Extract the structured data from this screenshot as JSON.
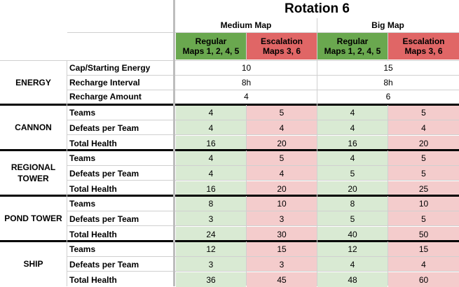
{
  "title": "Rotation 6",
  "maps": {
    "medium": "Medium Map",
    "big": "Big Map"
  },
  "headers": {
    "regular_line1": "Regular",
    "regular_line2": "Maps 1, 2, 4, 5",
    "escalation_line1": "Escalation",
    "escalation_line2": "Maps 3, 6"
  },
  "colors": {
    "green_header": "#6aa84f",
    "red_header": "#e06666",
    "green_cell": "#d9ead3",
    "red_cell": "#f4cccc"
  },
  "energy": {
    "category": "ENERGY",
    "rows": [
      {
        "label": "Cap/Starting Energy",
        "medium": "10",
        "big": "15"
      },
      {
        "label": "Recharge Interval",
        "medium": "8h",
        "big": "8h"
      },
      {
        "label": "Recharge Amount",
        "medium": "4",
        "big": "6"
      }
    ]
  },
  "groups": [
    {
      "category_line1": "CANNON",
      "category_line2": "",
      "rows": [
        {
          "label": "Teams",
          "v": [
            "4",
            "5",
            "4",
            "5"
          ]
        },
        {
          "label": "Defeats per Team",
          "v": [
            "4",
            "4",
            "4",
            "4"
          ]
        },
        {
          "label": "Total Health",
          "v": [
            "16",
            "20",
            "16",
            "20"
          ]
        }
      ]
    },
    {
      "category_line1": "REGIONAL",
      "category_line2": "TOWER",
      "rows": [
        {
          "label": "Teams",
          "v": [
            "4",
            "5",
            "4",
            "5"
          ]
        },
        {
          "label": "Defeats per Team",
          "v": [
            "4",
            "4",
            "5",
            "5"
          ]
        },
        {
          "label": "Total Health",
          "v": [
            "16",
            "20",
            "20",
            "25"
          ]
        }
      ]
    },
    {
      "category_line1": "POND TOWER",
      "category_line2": "",
      "rows": [
        {
          "label": "Teams",
          "v": [
            "8",
            "10",
            "8",
            "10"
          ]
        },
        {
          "label": "Defeats per Team",
          "v": [
            "3",
            "3",
            "5",
            "5"
          ]
        },
        {
          "label": "Total Health",
          "v": [
            "24",
            "30",
            "40",
            "50"
          ]
        }
      ]
    },
    {
      "category_line1": "SHIP",
      "category_line2": "",
      "rows": [
        {
          "label": "Teams",
          "v": [
            "12",
            "15",
            "12",
            "15"
          ]
        },
        {
          "label": "Defeats per Team",
          "v": [
            "3",
            "3",
            "4",
            "4"
          ]
        },
        {
          "label": "Total Health",
          "v": [
            "36",
            "45",
            "48",
            "60"
          ]
        }
      ]
    }
  ]
}
